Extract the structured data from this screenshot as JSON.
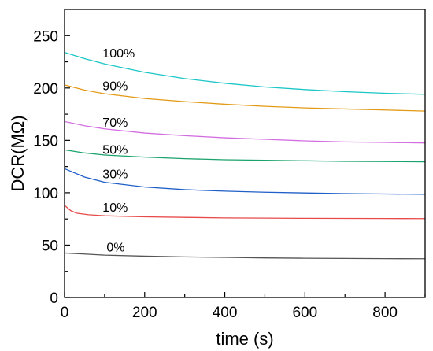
{
  "chart_data": {
    "type": "line",
    "title": "",
    "xlabel": "time (s)",
    "ylabel": "DCR(MΩ)",
    "xlim": [
      0,
      900
    ],
    "ylim": [
      0,
      275
    ],
    "x_ticks": [
      0,
      200,
      400,
      600,
      800
    ],
    "y_ticks": [
      0,
      50,
      100,
      150,
      200,
      250
    ],
    "grid": false,
    "legend": "none",
    "series": [
      {
        "name": "100%",
        "color": "#1cc6c6",
        "x": [
          0,
          50,
          100,
          200,
          300,
          400,
          500,
          600,
          700,
          800,
          900
        ],
        "y": [
          234,
          228,
          223,
          215,
          209,
          204.5,
          201,
          198.5,
          196.5,
          195,
          194
        ]
      },
      {
        "name": "90%",
        "color": "#e39a16",
        "x": [
          0,
          50,
          100,
          200,
          300,
          400,
          500,
          600,
          700,
          800,
          900
        ],
        "y": [
          203,
          198,
          194.5,
          190,
          187,
          184.5,
          182.5,
          181,
          180,
          179,
          178
        ]
      },
      {
        "name": "70%",
        "color": "#d36ee0",
        "x": [
          0,
          50,
          100,
          200,
          300,
          400,
          500,
          600,
          700,
          800,
          900
        ],
        "y": [
          168,
          164,
          161,
          157,
          154.5,
          152.5,
          151,
          149.5,
          148.5,
          148,
          147.5
        ]
      },
      {
        "name": "50%",
        "color": "#1aa36c",
        "x": [
          0,
          50,
          100,
          200,
          300,
          400,
          500,
          600,
          700,
          800,
          900
        ],
        "y": [
          141,
          138,
          136,
          134,
          132.5,
          131.5,
          131,
          130.5,
          130,
          129.8,
          129.5
        ]
      },
      {
        "name": "30%",
        "color": "#1f5fc8",
        "x": [
          0,
          50,
          100,
          200,
          300,
          400,
          500,
          600,
          700,
          800,
          900
        ],
        "y": [
          123,
          115,
          110,
          105.5,
          103,
          101.5,
          100.5,
          99.8,
          99.2,
          98.8,
          98.5
        ]
      },
      {
        "name": "10%",
        "color": "#e84a4a",
        "x": [
          0,
          15,
          30,
          60,
          100,
          200,
          300,
          400,
          500,
          600,
          700,
          800,
          900
        ],
        "y": [
          88,
          83,
          80.5,
          79,
          78,
          77,
          76.5,
          76,
          75.8,
          75.6,
          75.5,
          75.4,
          75.3
        ]
      },
      {
        "name": "0%",
        "color": "#555555",
        "x": [
          0,
          50,
          100,
          200,
          300,
          400,
          500,
          600,
          700,
          800,
          900
        ],
        "y": [
          42.5,
          41.5,
          40.5,
          39.5,
          38.8,
          38.3,
          37.8,
          37.5,
          37.3,
          37.1,
          37
        ]
      }
    ],
    "annotations": [
      {
        "text": "100%",
        "x": 95,
        "y": 229
      },
      {
        "text": "90%",
        "x": 95,
        "y": 198
      },
      {
        "text": "70%",
        "x": 95,
        "y": 163
      },
      {
        "text": "50%",
        "x": 95,
        "y": 137
      },
      {
        "text": "30%",
        "x": 95,
        "y": 114
      },
      {
        "text": "10%",
        "x": 95,
        "y": 82
      },
      {
        "text": "0%",
        "x": 105,
        "y": 44
      }
    ]
  }
}
